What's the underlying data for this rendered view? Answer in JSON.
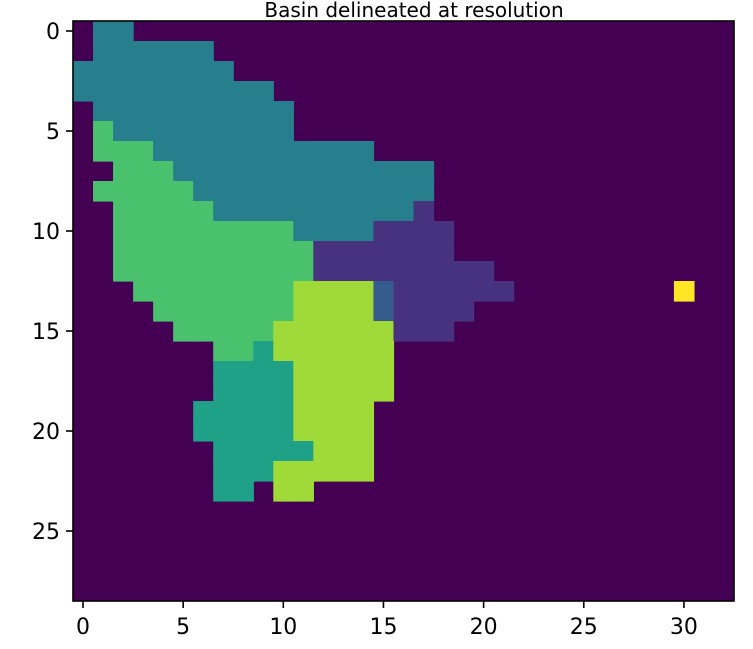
{
  "chart_data": {
    "type": "heatmap",
    "title": "Basin delineated at resolution",
    "xlabel": "",
    "ylabel": "",
    "n_cols": 33,
    "n_rows": 29,
    "xlim": [
      -0.5,
      32.5
    ],
    "ylim": [
      28.5,
      -0.5
    ],
    "x_ticks": [
      0,
      5,
      10,
      15,
      20,
      25,
      30
    ],
    "y_ticks": [
      0,
      5,
      10,
      15,
      20,
      25
    ],
    "colormap": "viridis",
    "background_value": 0,
    "palette": {
      "0": "#440154",
      "1": "#46327e",
      "2": "#365c8d",
      "3": "#277f8e",
      "4": "#1fa187",
      "5": "#4ac16d",
      "6": "#a0da39",
      "7": "#fde725"
    },
    "grid": false,
    "legend": "none",
    "cells": [
      {
        "row": 0,
        "spans": [
          [
            1,
            2,
            3
          ]
        ]
      },
      {
        "row": 1,
        "spans": [
          [
            1,
            6,
            3
          ]
        ]
      },
      {
        "row": 2,
        "spans": [
          [
            0,
            7,
            3
          ]
        ]
      },
      {
        "row": 3,
        "spans": [
          [
            0,
            9,
            3
          ]
        ]
      },
      {
        "row": 4,
        "spans": [
          [
            1,
            10,
            3
          ]
        ]
      },
      {
        "row": 5,
        "spans": [
          [
            1,
            1,
            5
          ],
          [
            2,
            10,
            3
          ]
        ]
      },
      {
        "row": 6,
        "spans": [
          [
            1,
            3,
            5
          ],
          [
            4,
            14,
            3
          ]
        ]
      },
      {
        "row": 7,
        "spans": [
          [
            2,
            4,
            5
          ],
          [
            5,
            17,
            3
          ]
        ]
      },
      {
        "row": 8,
        "spans": [
          [
            1,
            5,
            5
          ],
          [
            6,
            17,
            3
          ]
        ]
      },
      {
        "row": 9,
        "spans": [
          [
            2,
            6,
            5
          ],
          [
            7,
            16,
            3
          ],
          [
            17,
            17,
            1
          ]
        ]
      },
      {
        "row": 10,
        "spans": [
          [
            2,
            10,
            5
          ],
          [
            11,
            14,
            3
          ],
          [
            15,
            18,
            1
          ]
        ]
      },
      {
        "row": 11,
        "spans": [
          [
            2,
            11,
            5
          ],
          [
            12,
            18,
            1
          ]
        ]
      },
      {
        "row": 12,
        "spans": [
          [
            2,
            11,
            5
          ],
          [
            12,
            20,
            1
          ]
        ]
      },
      {
        "row": 13,
        "spans": [
          [
            3,
            10,
            5
          ],
          [
            11,
            14,
            6
          ],
          [
            15,
            15,
            2
          ],
          [
            16,
            21,
            1
          ],
          [
            30,
            30,
            7
          ]
        ]
      },
      {
        "row": 14,
        "spans": [
          [
            4,
            10,
            5
          ],
          [
            11,
            14,
            6
          ],
          [
            15,
            15,
            2
          ],
          [
            16,
            19,
            1
          ]
        ]
      },
      {
        "row": 15,
        "spans": [
          [
            5,
            9,
            5
          ],
          [
            10,
            15,
            6
          ],
          [
            16,
            18,
            1
          ]
        ]
      },
      {
        "row": 16,
        "spans": [
          [
            7,
            8,
            5
          ],
          [
            9,
            9,
            4
          ],
          [
            10,
            15,
            6
          ]
        ]
      },
      {
        "row": 17,
        "spans": [
          [
            7,
            10,
            4
          ],
          [
            11,
            15,
            6
          ]
        ]
      },
      {
        "row": 18,
        "spans": [
          [
            7,
            10,
            4
          ],
          [
            11,
            15,
            6
          ]
        ]
      },
      {
        "row": 19,
        "spans": [
          [
            6,
            10,
            4
          ],
          [
            11,
            14,
            6
          ]
        ]
      },
      {
        "row": 20,
        "spans": [
          [
            6,
            10,
            4
          ],
          [
            11,
            14,
            6
          ]
        ]
      },
      {
        "row": 21,
        "spans": [
          [
            7,
            11,
            4
          ],
          [
            12,
            14,
            6
          ]
        ]
      },
      {
        "row": 22,
        "spans": [
          [
            7,
            9,
            4
          ],
          [
            10,
            14,
            6
          ]
        ]
      },
      {
        "row": 23,
        "spans": [
          [
            7,
            8,
            4
          ],
          [
            10,
            11,
            6
          ]
        ]
      }
    ]
  }
}
